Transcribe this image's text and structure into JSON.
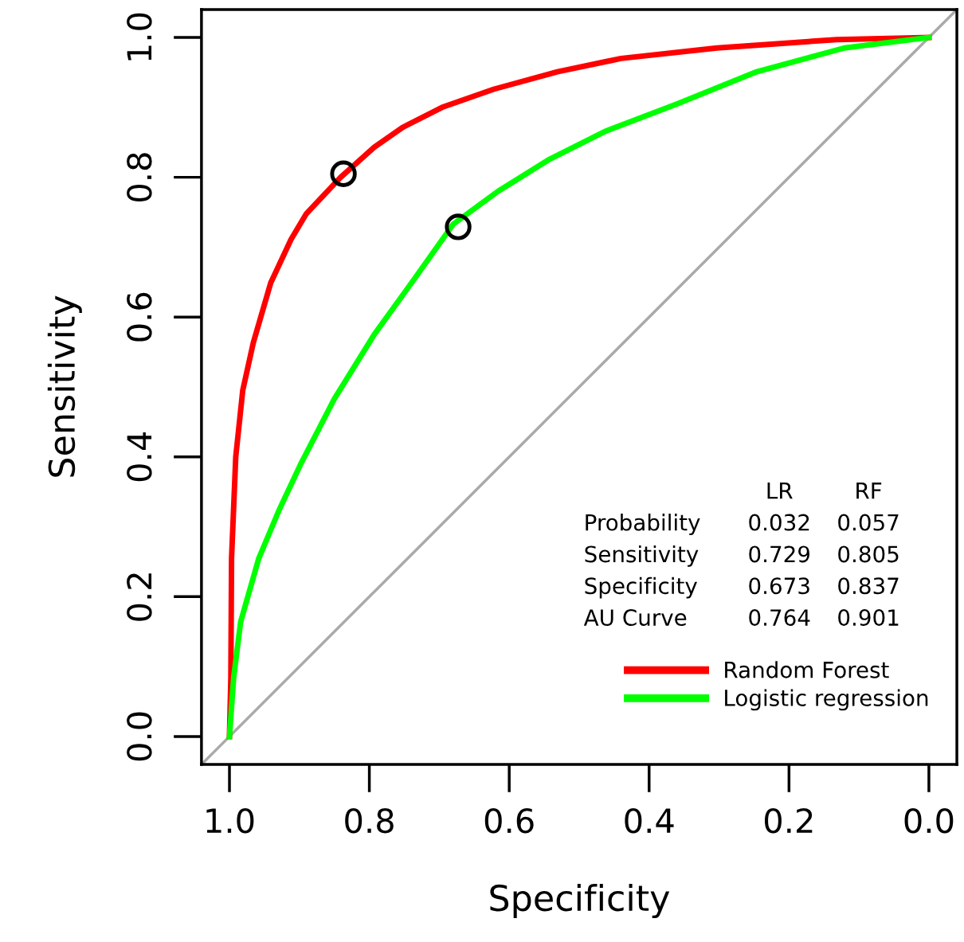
{
  "chart_data": {
    "type": "line",
    "xlabel": "Specificity",
    "ylabel": "Sensitivity",
    "xlim": [
      1.04,
      -0.04
    ],
    "ylim": [
      -0.04,
      1.04
    ],
    "xticks": [
      {
        "value": 1,
        "label": "1.0"
      },
      {
        "value": 0.8,
        "label": "0.8"
      },
      {
        "value": 0.6,
        "label": "0.6"
      },
      {
        "value": 0.4,
        "label": "0.4"
      },
      {
        "value": 0.2,
        "label": "0.2"
      },
      {
        "value": 0,
        "label": "0.0"
      }
    ],
    "yticks": [
      {
        "value": 0,
        "label": "0.0"
      },
      {
        "value": 0.2,
        "label": "0.2"
      },
      {
        "value": 0.4,
        "label": "0.4"
      },
      {
        "value": 0.6,
        "label": "0.6"
      },
      {
        "value": 0.8,
        "label": "0.8"
      },
      {
        "value": 1,
        "label": "1.0"
      }
    ],
    "grid": false,
    "legend": "bottom right",
    "series": [
      {
        "type": "line",
        "color": "#aaaaaa",
        "x": [
          1.04,
          -0.04
        ],
        "values": [
          -0.04,
          1.04
        ]
      },
      {
        "name": "Random Forest",
        "color": "#ff0000",
        "x": [
          1,
          0.998,
          0.997,
          0.991,
          0.981,
          0.966,
          0.941,
          0.912,
          0.89,
          0.841,
          0.793,
          0.753,
          0.696,
          0.622,
          0.531,
          0.44,
          0.303,
          0.132,
          0
        ],
        "values": [
          0,
          0.084,
          0.255,
          0.4,
          0.495,
          0.563,
          0.649,
          0.711,
          0.748,
          0.8,
          0.843,
          0.871,
          0.9,
          0.926,
          0.951,
          0.97,
          0.985,
          0.997,
          1
        ]
      },
      {
        "name": "Logistic regression",
        "color": "#00ff00",
        "x": [
          1,
          0.994,
          0.984,
          0.958,
          0.929,
          0.897,
          0.85,
          0.793,
          0.736,
          0.68,
          0.616,
          0.542,
          0.462,
          0.36,
          0.246,
          0.121,
          0
        ],
        "values": [
          0,
          0.084,
          0.164,
          0.255,
          0.324,
          0.392,
          0.483,
          0.575,
          0.654,
          0.733,
          0.78,
          0.826,
          0.866,
          0.905,
          0.951,
          0.985,
          1
        ]
      },
      {
        "type": "scatter",
        "color": "#000000",
        "marker": "circle",
        "x": [
          0.837,
          0.673
        ],
        "values": [
          0.805,
          0.729
        ]
      }
    ],
    "annotations": [
      "LR",
      "RF",
      "Probability",
      "0.032",
      "0.057",
      "Sensitivity",
      "0.729",
      "0.805",
      "Specificity",
      "0.673",
      "0.837",
      "AU Curve",
      "0.764",
      "0.901"
    ]
  }
}
